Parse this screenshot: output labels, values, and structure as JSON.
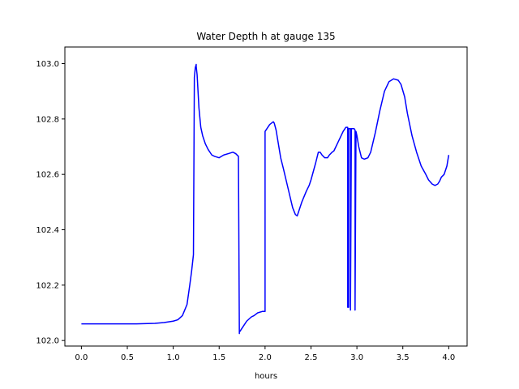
{
  "chart_data": {
    "type": "line",
    "title": "Water Depth h at gauge 135",
    "xlabel": "hours",
    "ylabel": "",
    "xlim": [
      -0.18,
      4.2
    ],
    "ylim": [
      101.98,
      103.06
    ],
    "xticks": [
      0.0,
      0.5,
      1.0,
      1.5,
      2.0,
      2.5,
      3.0,
      3.5,
      4.0
    ],
    "xtick_labels": [
      "0.0",
      "0.5",
      "1.0",
      "1.5",
      "2.0",
      "2.5",
      "3.0",
      "3.5",
      "4.0"
    ],
    "yticks": [
      102.0,
      102.2,
      102.4,
      102.6,
      102.8,
      103.0
    ],
    "ytick_labels": [
      "102.0",
      "102.2",
      "102.4",
      "102.6",
      "102.8",
      "103.0"
    ],
    "grid": false,
    "series": [
      {
        "color": "#0000ff",
        "x": [
          0.0,
          0.3,
          0.6,
          0.8,
          0.9,
          1.0,
          1.05,
          1.1,
          1.15,
          1.18,
          1.2,
          1.21,
          1.22,
          1.23,
          1.24,
          1.25,
          1.25,
          1.26,
          1.27,
          1.28,
          1.3,
          1.32,
          1.35,
          1.38,
          1.42,
          1.45,
          1.5,
          1.55,
          1.6,
          1.65,
          1.68,
          1.71,
          1.72,
          1.72,
          1.75,
          1.8,
          1.85,
          1.88,
          1.92,
          1.97,
          2.0,
          2.0,
          2.02,
          2.05,
          2.07,
          2.09,
          2.1,
          2.12,
          2.15,
          2.17,
          2.2,
          2.25,
          2.3,
          2.33,
          2.35,
          2.37,
          2.4,
          2.45,
          2.48,
          2.5,
          2.55,
          2.58,
          2.6,
          2.62,
          2.65,
          2.68,
          2.7,
          2.73,
          2.75,
          2.8,
          2.85,
          2.88,
          2.89,
          2.9,
          2.9,
          2.91,
          2.91,
          2.92,
          2.93,
          2.93,
          2.94,
          2.97,
          2.98,
          2.98,
          2.99,
          3.0,
          3.02,
          3.05,
          3.08,
          3.12,
          3.15,
          3.2,
          3.25,
          3.3,
          3.35,
          3.4,
          3.45,
          3.48,
          3.52,
          3.55,
          3.6,
          3.65,
          3.7,
          3.75,
          3.78,
          3.82,
          3.85,
          3.88,
          3.9,
          3.92,
          3.95,
          3.98,
          4.0
        ],
        "y": [
          102.06,
          102.06,
          102.06,
          102.062,
          102.065,
          102.07,
          102.075,
          102.09,
          102.13,
          102.2,
          102.25,
          102.28,
          102.31,
          102.95,
          102.985,
          102.997,
          102.99,
          102.96,
          102.9,
          102.84,
          102.77,
          102.74,
          102.71,
          102.69,
          102.67,
          102.665,
          102.66,
          102.67,
          102.675,
          102.68,
          102.675,
          102.665,
          102.025,
          102.03,
          102.045,
          102.07,
          102.085,
          102.09,
          102.1,
          102.105,
          102.105,
          102.755,
          102.765,
          102.78,
          102.785,
          102.79,
          102.785,
          102.76,
          102.7,
          102.66,
          102.62,
          102.55,
          102.48,
          102.455,
          102.45,
          102.47,
          102.5,
          102.54,
          102.56,
          102.58,
          102.64,
          102.68,
          102.68,
          102.67,
          102.66,
          102.66,
          102.67,
          102.68,
          102.685,
          102.72,
          102.755,
          102.77,
          102.77,
          102.77,
          102.12,
          102.12,
          102.765,
          102.765,
          102.765,
          102.11,
          102.765,
          102.765,
          102.76,
          102.11,
          102.755,
          102.74,
          102.7,
          102.66,
          102.655,
          102.66,
          102.68,
          102.75,
          102.83,
          102.9,
          102.935,
          102.945,
          102.94,
          102.925,
          102.88,
          102.82,
          102.74,
          102.68,
          102.63,
          102.6,
          102.58,
          102.565,
          102.56,
          102.565,
          102.575,
          102.59,
          102.6,
          102.63,
          102.67
        ]
      }
    ]
  }
}
